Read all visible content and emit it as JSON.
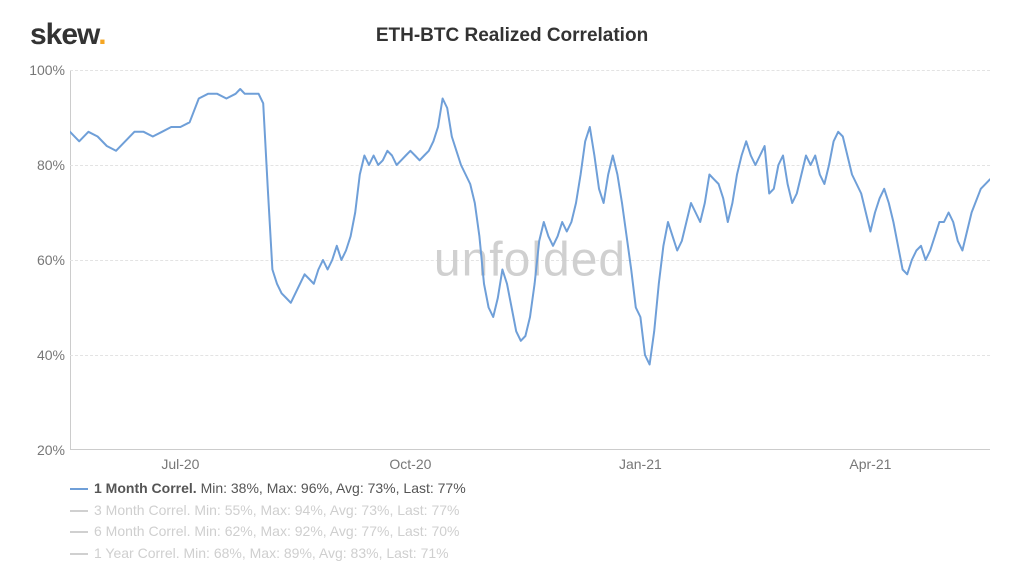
{
  "logo": {
    "text": "skew",
    "dot": "."
  },
  "title": "ETH-BTC Realized Correlation",
  "watermark": "unfolded",
  "chart": {
    "type": "line",
    "background_color": "#ffffff",
    "grid_color": "#e3e3e3",
    "axis_color": "#cccccc",
    "label_color": "#777777",
    "label_fontsize": 14,
    "title_fontsize": 19,
    "title_color": "#333333",
    "ylim": [
      20,
      100
    ],
    "yticks": [
      20,
      40,
      60,
      80,
      100
    ],
    "ytick_labels": [
      "20%",
      "40%",
      "60%",
      "80%",
      "100%"
    ],
    "xtick_positions": [
      0.12,
      0.37,
      0.62,
      0.87
    ],
    "xtick_labels": [
      "Jul-20",
      "Oct-20",
      "Jan-21",
      "Apr-21"
    ],
    "series": {
      "name": "1 Month Correl.",
      "color": "#6f9fd8",
      "line_width": 2,
      "data": [
        [
          0.0,
          87
        ],
        [
          0.01,
          85
        ],
        [
          0.02,
          87
        ],
        [
          0.03,
          86
        ],
        [
          0.04,
          84
        ],
        [
          0.05,
          83
        ],
        [
          0.06,
          85
        ],
        [
          0.07,
          87
        ],
        [
          0.08,
          87
        ],
        [
          0.09,
          86
        ],
        [
          0.1,
          87
        ],
        [
          0.11,
          88
        ],
        [
          0.12,
          88
        ],
        [
          0.13,
          89
        ],
        [
          0.14,
          94
        ],
        [
          0.15,
          95
        ],
        [
          0.16,
          95
        ],
        [
          0.17,
          94
        ],
        [
          0.18,
          95
        ],
        [
          0.185,
          96
        ],
        [
          0.19,
          95
        ],
        [
          0.2,
          95
        ],
        [
          0.205,
          95
        ],
        [
          0.21,
          93
        ],
        [
          0.215,
          75
        ],
        [
          0.22,
          58
        ],
        [
          0.225,
          55
        ],
        [
          0.23,
          53
        ],
        [
          0.235,
          52
        ],
        [
          0.24,
          51
        ],
        [
          0.245,
          53
        ],
        [
          0.25,
          55
        ],
        [
          0.255,
          57
        ],
        [
          0.26,
          56
        ],
        [
          0.265,
          55
        ],
        [
          0.27,
          58
        ],
        [
          0.275,
          60
        ],
        [
          0.28,
          58
        ],
        [
          0.285,
          60
        ],
        [
          0.29,
          63
        ],
        [
          0.295,
          60
        ],
        [
          0.3,
          62
        ],
        [
          0.305,
          65
        ],
        [
          0.31,
          70
        ],
        [
          0.315,
          78
        ],
        [
          0.32,
          82
        ],
        [
          0.325,
          80
        ],
        [
          0.33,
          82
        ],
        [
          0.335,
          80
        ],
        [
          0.34,
          81
        ],
        [
          0.345,
          83
        ],
        [
          0.35,
          82
        ],
        [
          0.355,
          80
        ],
        [
          0.36,
          81
        ],
        [
          0.365,
          82
        ],
        [
          0.37,
          83
        ],
        [
          0.375,
          82
        ],
        [
          0.38,
          81
        ],
        [
          0.385,
          82
        ],
        [
          0.39,
          83
        ],
        [
          0.395,
          85
        ],
        [
          0.4,
          88
        ],
        [
          0.405,
          94
        ],
        [
          0.41,
          92
        ],
        [
          0.415,
          86
        ],
        [
          0.42,
          83
        ],
        [
          0.425,
          80
        ],
        [
          0.43,
          78
        ],
        [
          0.435,
          76
        ],
        [
          0.44,
          72
        ],
        [
          0.445,
          65
        ],
        [
          0.45,
          55
        ],
        [
          0.455,
          50
        ],
        [
          0.46,
          48
        ],
        [
          0.465,
          52
        ],
        [
          0.47,
          58
        ],
        [
          0.475,
          55
        ],
        [
          0.48,
          50
        ],
        [
          0.485,
          45
        ],
        [
          0.49,
          43
        ],
        [
          0.495,
          44
        ],
        [
          0.5,
          48
        ],
        [
          0.505,
          55
        ],
        [
          0.51,
          64
        ],
        [
          0.515,
          68
        ],
        [
          0.52,
          65
        ],
        [
          0.525,
          63
        ],
        [
          0.53,
          65
        ],
        [
          0.535,
          68
        ],
        [
          0.54,
          66
        ],
        [
          0.545,
          68
        ],
        [
          0.55,
          72
        ],
        [
          0.555,
          78
        ],
        [
          0.56,
          85
        ],
        [
          0.565,
          88
        ],
        [
          0.57,
          82
        ],
        [
          0.575,
          75
        ],
        [
          0.58,
          72
        ],
        [
          0.585,
          78
        ],
        [
          0.59,
          82
        ],
        [
          0.595,
          78
        ],
        [
          0.6,
          72
        ],
        [
          0.605,
          65
        ],
        [
          0.61,
          58
        ],
        [
          0.615,
          50
        ],
        [
          0.62,
          48
        ],
        [
          0.625,
          40
        ],
        [
          0.63,
          38
        ],
        [
          0.635,
          45
        ],
        [
          0.64,
          55
        ],
        [
          0.645,
          63
        ],
        [
          0.65,
          68
        ],
        [
          0.655,
          65
        ],
        [
          0.66,
          62
        ],
        [
          0.665,
          64
        ],
        [
          0.67,
          68
        ],
        [
          0.675,
          72
        ],
        [
          0.68,
          70
        ],
        [
          0.685,
          68
        ],
        [
          0.69,
          72
        ],
        [
          0.695,
          78
        ],
        [
          0.7,
          77
        ],
        [
          0.705,
          76
        ],
        [
          0.71,
          73
        ],
        [
          0.715,
          68
        ],
        [
          0.72,
          72
        ],
        [
          0.725,
          78
        ],
        [
          0.73,
          82
        ],
        [
          0.735,
          85
        ],
        [
          0.74,
          82
        ],
        [
          0.745,
          80
        ],
        [
          0.75,
          82
        ],
        [
          0.755,
          84
        ],
        [
          0.76,
          74
        ],
        [
          0.765,
          75
        ],
        [
          0.77,
          80
        ],
        [
          0.775,
          82
        ],
        [
          0.78,
          76
        ],
        [
          0.785,
          72
        ],
        [
          0.79,
          74
        ],
        [
          0.795,
          78
        ],
        [
          0.8,
          82
        ],
        [
          0.805,
          80
        ],
        [
          0.81,
          82
        ],
        [
          0.815,
          78
        ],
        [
          0.82,
          76
        ],
        [
          0.825,
          80
        ],
        [
          0.83,
          85
        ],
        [
          0.835,
          87
        ],
        [
          0.84,
          86
        ],
        [
          0.845,
          82
        ],
        [
          0.85,
          78
        ],
        [
          0.855,
          76
        ],
        [
          0.86,
          74
        ],
        [
          0.865,
          70
        ],
        [
          0.87,
          66
        ],
        [
          0.875,
          70
        ],
        [
          0.88,
          73
        ],
        [
          0.885,
          75
        ],
        [
          0.89,
          72
        ],
        [
          0.895,
          68
        ],
        [
          0.9,
          63
        ],
        [
          0.905,
          58
        ],
        [
          0.91,
          57
        ],
        [
          0.915,
          60
        ],
        [
          0.92,
          62
        ],
        [
          0.925,
          63
        ],
        [
          0.93,
          60
        ],
        [
          0.935,
          62
        ],
        [
          0.94,
          65
        ],
        [
          0.945,
          68
        ],
        [
          0.95,
          68
        ],
        [
          0.955,
          70
        ],
        [
          0.96,
          68
        ],
        [
          0.965,
          64
        ],
        [
          0.97,
          62
        ],
        [
          0.975,
          66
        ],
        [
          0.98,
          70
        ],
        [
          0.99,
          75
        ],
        [
          1.0,
          77
        ]
      ]
    }
  },
  "legend": [
    {
      "label": "1 Month Correl.",
      "stats": "Min: 38%, Max: 96%, Avg: 73%, Last: 77%",
      "color": "#6f9fd8",
      "active": true
    },
    {
      "label": "3 Month Correl.",
      "stats": "Min: 55%, Max: 94%, Avg: 73%, Last: 77%",
      "color": "#d0d0d0",
      "active": false
    },
    {
      "label": "6 Month Correl.",
      "stats": "Min: 62%, Max: 92%, Avg: 77%, Last: 70%",
      "color": "#d0d0d0",
      "active": false
    },
    {
      "label": "1 Year Correl.",
      "stats": "Min: 68%, Max: 89%, Avg: 83%, Last: 71%",
      "color": "#d0d0d0",
      "active": false
    }
  ]
}
